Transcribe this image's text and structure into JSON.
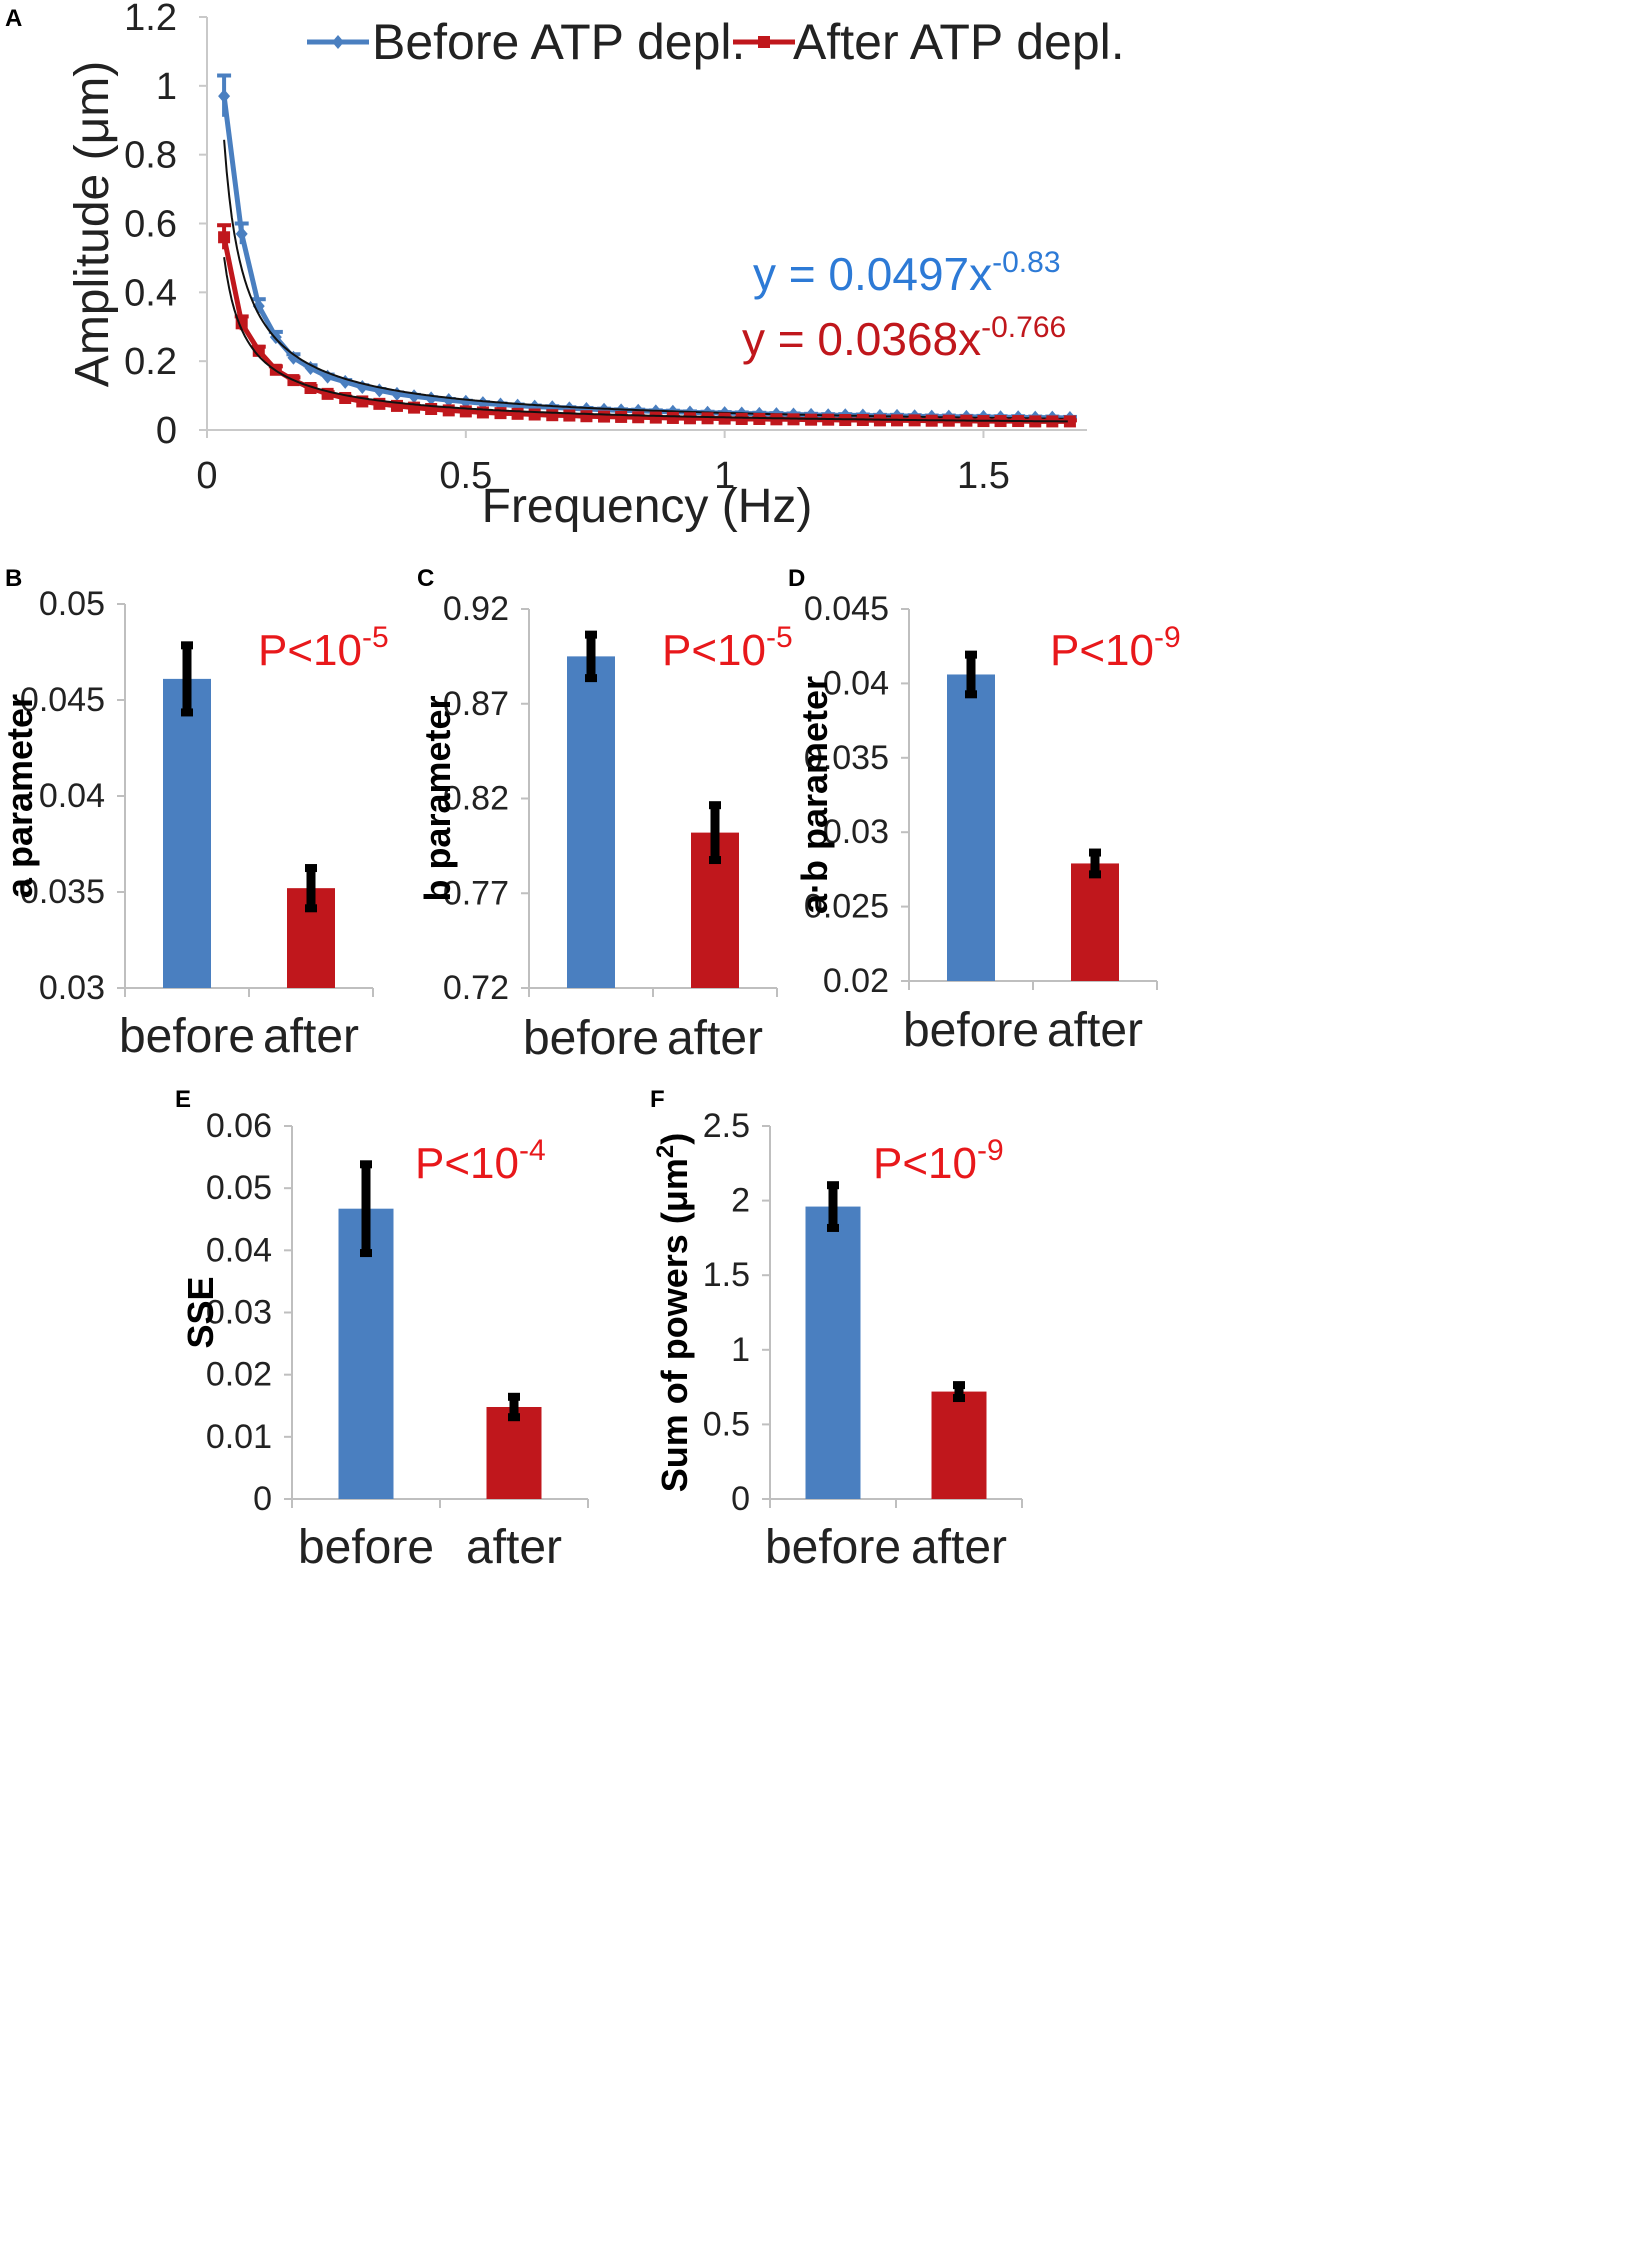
{
  "colors": {
    "before": "#4a7fc0",
    "after": "#c0171c",
    "pvalue": "#e8181b",
    "fit": "#111111"
  },
  "chart_data": [
    {
      "id": "A",
      "type": "line",
      "panel_label": "A",
      "xlabel": "Frequency (Hz)",
      "ylabel": "Amplitude (μm)",
      "xlim": [
        0,
        1.7
      ],
      "ylim": [
        0,
        1.2
      ],
      "xticks": [
        "0",
        "0.5",
        "1",
        "1.5"
      ],
      "xtick_values": [
        0,
        0.5,
        1,
        1.5
      ],
      "yticks": [
        "0",
        "0.2",
        "0.4",
        "0.6",
        "0.8",
        "1",
        "1.2"
      ],
      "ytick_values": [
        0,
        0.2,
        0.4,
        0.6,
        0.8,
        1,
        1.2
      ],
      "x": [
        0.033,
        0.067,
        0.1,
        0.133,
        0.167,
        0.2,
        0.233,
        0.267,
        0.3,
        0.333,
        0.367,
        0.4,
        0.433,
        0.467,
        0.5,
        0.533,
        0.567,
        0.6,
        0.633,
        0.667,
        0.7,
        0.733,
        0.767,
        0.8,
        0.833,
        0.867,
        0.9,
        0.933,
        0.967,
        1.0,
        1.033,
        1.067,
        1.1,
        1.133,
        1.167,
        1.2,
        1.233,
        1.267,
        1.3,
        1.333,
        1.367,
        1.4,
        1.433,
        1.467,
        1.5,
        1.533,
        1.567,
        1.6,
        1.633,
        1.667
      ],
      "series": [
        {
          "name": "Before ATP depl.",
          "key": "before",
          "marker": "diamond",
          "values": [
            0.97,
            0.57,
            0.36,
            0.27,
            0.21,
            0.18,
            0.155,
            0.14,
            0.125,
            0.115,
            0.105,
            0.098,
            0.092,
            0.087,
            0.082,
            0.078,
            0.074,
            0.071,
            0.068,
            0.066,
            0.063,
            0.061,
            0.059,
            0.057,
            0.056,
            0.054,
            0.053,
            0.051,
            0.05,
            0.049,
            0.048,
            0.047,
            0.046,
            0.045,
            0.044,
            0.043,
            0.043,
            0.042,
            0.041,
            0.041,
            0.04,
            0.039,
            0.039,
            0.038,
            0.038,
            0.037,
            0.037,
            0.036,
            0.036,
            0.035
          ],
          "errors": [
            0.06,
            0.03,
            0.02,
            0.015,
            0.01,
            0.008,
            0.006,
            0.005,
            0.005,
            0.004,
            0.004,
            0.004,
            0.003,
            0.003,
            0.003,
            0.003,
            0.003,
            0.003,
            0.003,
            0.003,
            0.003,
            0.003,
            0.003,
            0.003,
            0.003,
            0.003,
            0.003,
            0.003,
            0.003,
            0.003,
            0.003,
            0.003,
            0.003,
            0.003,
            0.003,
            0.003,
            0.003,
            0.003,
            0.003,
            0.003,
            0.003,
            0.003,
            0.003,
            0.003,
            0.003,
            0.003,
            0.003,
            0.003,
            0.003,
            0.003
          ],
          "fit": {
            "a": 0.0497,
            "b": -0.83,
            "label": "y = 0.0497x",
            "exponent": "-0.83"
          }
        },
        {
          "name": "After ATP depl.",
          "key": "after",
          "marker": "square",
          "values": [
            0.56,
            0.31,
            0.23,
            0.175,
            0.145,
            0.122,
            0.105,
            0.093,
            0.083,
            0.076,
            0.07,
            0.065,
            0.061,
            0.057,
            0.054,
            0.051,
            0.049,
            0.047,
            0.045,
            0.043,
            0.042,
            0.04,
            0.039,
            0.038,
            0.037,
            0.036,
            0.035,
            0.034,
            0.034,
            0.033,
            0.032,
            0.032,
            0.031,
            0.031,
            0.03,
            0.03,
            0.029,
            0.029,
            0.028,
            0.028,
            0.028,
            0.027,
            0.027,
            0.027,
            0.026,
            0.026,
            0.026,
            0.025,
            0.025,
            0.025
          ],
          "errors": [
            0.035,
            0.02,
            0.012,
            0.01,
            0.008,
            0.006,
            0.005,
            0.004,
            0.004,
            0.003,
            0.003,
            0.003,
            0.003,
            0.003,
            0.003,
            0.003,
            0.003,
            0.003,
            0.003,
            0.003,
            0.003,
            0.003,
            0.003,
            0.003,
            0.003,
            0.003,
            0.003,
            0.003,
            0.003,
            0.003,
            0.003,
            0.003,
            0.003,
            0.003,
            0.003,
            0.003,
            0.003,
            0.003,
            0.003,
            0.003,
            0.003,
            0.003,
            0.003,
            0.003,
            0.003,
            0.003,
            0.003,
            0.003,
            0.003,
            0.003
          ],
          "fit": {
            "a": 0.0368,
            "b": -0.766,
            "label": "y = 0.0368x",
            "exponent": "-0.766"
          }
        }
      ],
      "legend": "top"
    },
    {
      "id": "B",
      "type": "bar",
      "panel_label": "B",
      "ylabel": "a parameter",
      "categories": [
        "before",
        "after"
      ],
      "values": [
        0.0461,
        0.0352
      ],
      "errors": [
        0.0018,
        0.0011
      ],
      "ylim": [
        0.03,
        0.05
      ],
      "yticks": [
        "0.03",
        "0.035",
        "0.04",
        "0.045",
        "0.05"
      ],
      "ytick_values": [
        0.03,
        0.035,
        0.04,
        0.045,
        0.05
      ],
      "pvalue": {
        "text": "P<10",
        "exp": "-5"
      }
    },
    {
      "id": "C",
      "type": "bar",
      "panel_label": "C",
      "ylabel": "b parameter",
      "categories": [
        "before",
        "after"
      ],
      "values": [
        0.895,
        0.802
      ],
      "errors": [
        0.012,
        0.015
      ],
      "ylim": [
        0.72,
        0.92
      ],
      "yticks": [
        "0.72",
        "0.77",
        "0.82",
        "0.87",
        "0.92"
      ],
      "ytick_values": [
        0.72,
        0.77,
        0.82,
        0.87,
        0.92
      ],
      "pvalue": {
        "text": "P<10",
        "exp": "-5"
      }
    },
    {
      "id": "D",
      "type": "bar",
      "panel_label": "D",
      "ylabel": "a·b parameter",
      "categories": [
        "before",
        "after"
      ],
      "values": [
        0.0406,
        0.0279
      ],
      "errors": [
        0.0014,
        0.0008
      ],
      "ylim": [
        0.02,
        0.045
      ],
      "yticks": [
        "0.02",
        "0.025",
        "0.03",
        "0.035",
        "0.04",
        "0.045"
      ],
      "ytick_values": [
        0.02,
        0.025,
        0.03,
        0.035,
        0.04,
        0.045
      ],
      "pvalue": {
        "text": "P<10",
        "exp": "-9"
      }
    },
    {
      "id": "E",
      "type": "bar",
      "panel_label": "E",
      "ylabel": "SSE",
      "categories": [
        "before",
        "after"
      ],
      "values": [
        0.0467,
        0.0148
      ],
      "errors": [
        0.0073,
        0.0018
      ],
      "ylim": [
        0,
        0.06
      ],
      "yticks": [
        "0",
        "0.01",
        "0.02",
        "0.03",
        "0.04",
        "0.05",
        "0.06"
      ],
      "ytick_values": [
        0,
        0.01,
        0.02,
        0.03,
        0.04,
        0.05,
        0.06
      ],
      "pvalue": {
        "text": "P<10",
        "exp": "-4"
      }
    },
    {
      "id": "F",
      "type": "bar",
      "panel_label": "F",
      "ylabel": "Sum of powers (μm",
      "ylabel_sup": "2",
      "ylabel_end": ")",
      "categories": [
        "before",
        "after"
      ],
      "values": [
        1.96,
        0.72
      ],
      "errors": [
        0.15,
        0.05
      ],
      "ylim": [
        0,
        2.5
      ],
      "yticks": [
        "0",
        "0.5",
        "1",
        "1.5",
        "2",
        "2.5"
      ],
      "ytick_values": [
        0,
        0.5,
        1,
        1.5,
        2,
        2.5
      ],
      "pvalue": {
        "text": "P<10",
        "exp": "-9"
      }
    }
  ]
}
